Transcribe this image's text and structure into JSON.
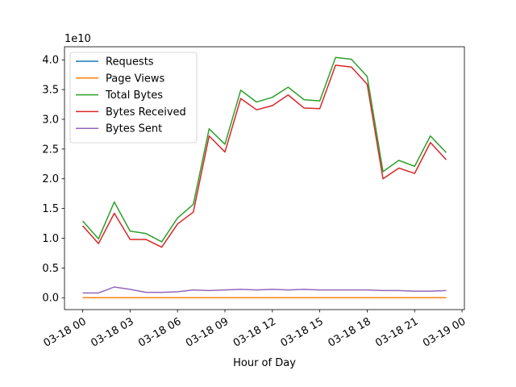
{
  "chart_data": {
    "type": "line",
    "xlabel": "Hour of Day",
    "ylabel": "",
    "y_scale_label": "1e10",
    "x": [
      "2024-03-18 00:00",
      "2024-03-18 01:00",
      "2024-03-18 02:00",
      "2024-03-18 03:00",
      "2024-03-18 04:00",
      "2024-03-18 05:00",
      "2024-03-18 06:00",
      "2024-03-18 07:00",
      "2024-03-18 08:00",
      "2024-03-18 09:00",
      "2024-03-18 10:00",
      "2024-03-18 11:00",
      "2024-03-18 12:00",
      "2024-03-18 13:00",
      "2024-03-18 14:00",
      "2024-03-18 15:00",
      "2024-03-18 16:00",
      "2024-03-18 17:00",
      "2024-03-18 18:00",
      "2024-03-18 19:00",
      "2024-03-18 20:00",
      "2024-03-18 21:00",
      "2024-03-18 22:00",
      "2024-03-18 23:00"
    ],
    "x_ticks": [
      "03-18 00",
      "03-18 03",
      "03-18 06",
      "03-18 09",
      "03-18 12",
      "03-18 15",
      "03-18 18",
      "03-18 21",
      "03-19 00"
    ],
    "x_tick_hours": [
      0,
      3,
      6,
      9,
      12,
      15,
      18,
      21,
      24
    ],
    "xlim_hours": [
      -1.15,
      24.15
    ],
    "ylim": [
      -0.2,
      4.22
    ],
    "y_ticks": [
      "0.0",
      "0.5",
      "1.0",
      "1.5",
      "2.0",
      "2.5",
      "3.0",
      "3.5",
      "4.0"
    ],
    "y_tick_values": [
      0,
      0.5,
      1.0,
      1.5,
      2.0,
      2.5,
      3.0,
      3.5,
      4.0
    ],
    "legend_position": "upper-left",
    "series": [
      {
        "name": "Requests",
        "color": "#1f77b4",
        "values": [
          0,
          0,
          0,
          0,
          0,
          0,
          0,
          0,
          0,
          0,
          0,
          0,
          0,
          0,
          0,
          0,
          0,
          0,
          0,
          0,
          0,
          0,
          0,
          0
        ]
      },
      {
        "name": "Page Views",
        "color": "#ff7f0e",
        "values": [
          0,
          0,
          0,
          0,
          0,
          0,
          0,
          0,
          0,
          0,
          0,
          0,
          0,
          0,
          0,
          0,
          0,
          0,
          0,
          0,
          0,
          0,
          0,
          0
        ]
      },
      {
        "name": "Total Bytes",
        "color": "#2ca02c",
        "values": [
          1.29,
          0.99,
          1.61,
          1.12,
          1.08,
          0.94,
          1.34,
          1.57,
          2.84,
          2.58,
          3.49,
          3.29,
          3.37,
          3.54,
          3.33,
          3.31,
          4.04,
          4.01,
          3.72,
          2.12,
          2.31,
          2.21,
          2.72,
          2.44
        ]
      },
      {
        "name": "Bytes Received",
        "color": "#d62728",
        "values": [
          1.21,
          0.91,
          1.42,
          0.98,
          0.98,
          0.85,
          1.24,
          1.44,
          2.72,
          2.45,
          3.35,
          3.16,
          3.23,
          3.41,
          3.19,
          3.18,
          3.91,
          3.88,
          3.59,
          2.0,
          2.18,
          2.09,
          2.61,
          2.32
        ]
      },
      {
        "name": "Bytes Sent",
        "color": "#9467bd",
        "values": [
          0.08,
          0.08,
          0.18,
          0.14,
          0.09,
          0.09,
          0.1,
          0.13,
          0.12,
          0.13,
          0.14,
          0.13,
          0.14,
          0.13,
          0.14,
          0.13,
          0.13,
          0.13,
          0.13,
          0.12,
          0.12,
          0.11,
          0.11,
          0.12
        ]
      }
    ]
  }
}
